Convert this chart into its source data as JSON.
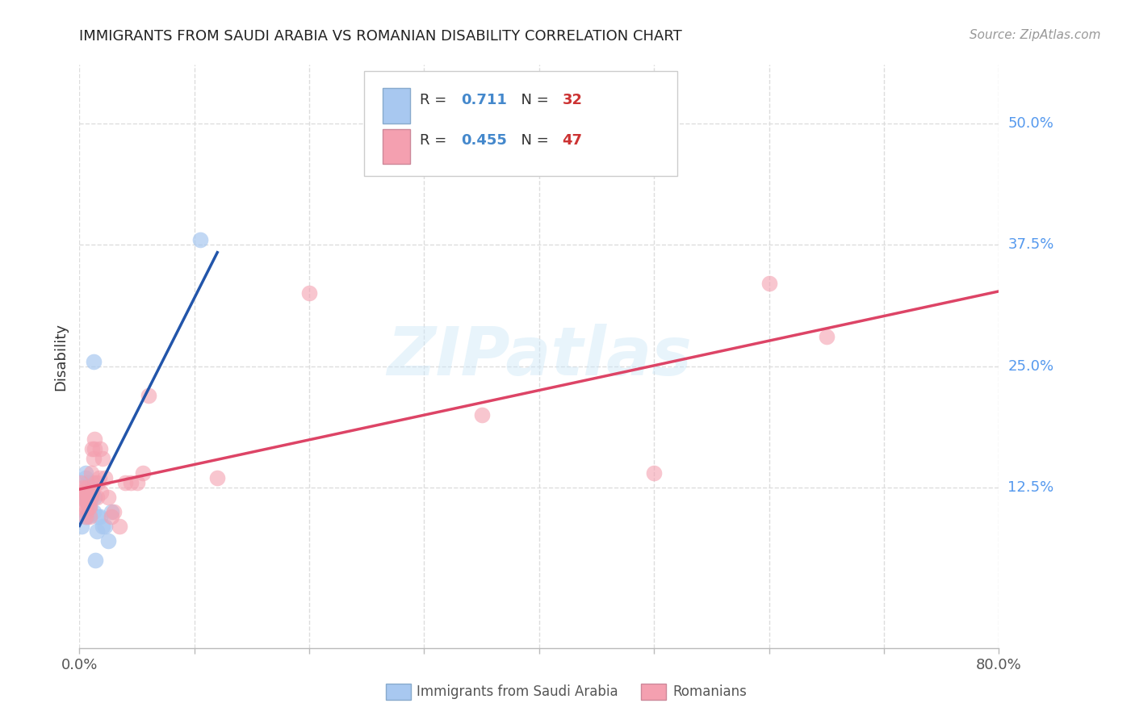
{
  "title": "IMMIGRANTS FROM SAUDI ARABIA VS ROMANIAN DISABILITY CORRELATION CHART",
  "source": "Source: ZipAtlas.com",
  "ylabel": "Disability",
  "watermark": "ZIPatlas",
  "legend_r1": "R =  0.711   N = 32",
  "legend_r2": "R =  0.455   N = 47",
  "legend_color1": "#a8c8f0",
  "legend_color2": "#f4a8b8",
  "legend_r_color": "#4488cc",
  "legend_n_color": "#cc3333",
  "right_yticks": [
    "50.0%",
    "37.5%",
    "25.0%",
    "12.5%"
  ],
  "right_ytick_vals": [
    0.5,
    0.375,
    0.25,
    0.125
  ],
  "xlim": [
    0.0,
    0.8
  ],
  "ylim": [
    -0.04,
    0.56
  ],
  "saudi_x": [
    0.002,
    0.003,
    0.004,
    0.005,
    0.005,
    0.006,
    0.006,
    0.007,
    0.007,
    0.007,
    0.008,
    0.008,
    0.008,
    0.009,
    0.009,
    0.009,
    0.01,
    0.01,
    0.01,
    0.011,
    0.012,
    0.012,
    0.013,
    0.014,
    0.015,
    0.016,
    0.018,
    0.02,
    0.022,
    0.025,
    0.028,
    0.105
  ],
  "saudi_y": [
    0.085,
    0.115,
    0.115,
    0.135,
    0.14,
    0.095,
    0.11,
    0.095,
    0.115,
    0.13,
    0.1,
    0.115,
    0.12,
    0.1,
    0.105,
    0.11,
    0.115,
    0.12,
    0.125,
    0.13,
    0.255,
    0.1,
    0.115,
    0.05,
    0.08,
    0.095,
    0.095,
    0.085,
    0.085,
    0.07,
    0.1,
    0.38
  ],
  "romanian_x": [
    0.001,
    0.002,
    0.003,
    0.003,
    0.004,
    0.004,
    0.005,
    0.005,
    0.005,
    0.006,
    0.006,
    0.007,
    0.007,
    0.008,
    0.008,
    0.009,
    0.009,
    0.01,
    0.01,
    0.011,
    0.011,
    0.012,
    0.013,
    0.013,
    0.014,
    0.015,
    0.016,
    0.017,
    0.018,
    0.019,
    0.02,
    0.022,
    0.025,
    0.028,
    0.03,
    0.035,
    0.04,
    0.045,
    0.05,
    0.055,
    0.06,
    0.12,
    0.2,
    0.35,
    0.5,
    0.6,
    0.65
  ],
  "romanian_y": [
    0.13,
    0.12,
    0.115,
    0.125,
    0.105,
    0.115,
    0.095,
    0.105,
    0.12,
    0.1,
    0.12,
    0.11,
    0.125,
    0.105,
    0.115,
    0.095,
    0.105,
    0.115,
    0.14,
    0.12,
    0.165,
    0.155,
    0.165,
    0.175,
    0.13,
    0.115,
    0.13,
    0.135,
    0.165,
    0.12,
    0.155,
    0.135,
    0.115,
    0.095,
    0.1,
    0.085,
    0.13,
    0.13,
    0.13,
    0.14,
    0.22,
    0.135,
    0.325,
    0.2,
    0.14,
    0.335,
    0.28
  ],
  "saudi_color": "#a8c8f0",
  "romanian_color": "#f4a0b0",
  "trendline_saudi_color": "#2255aa",
  "trendline_romanian_color": "#dd4466",
  "trendline_dashed_color": "#aaccee",
  "grid_color": "#dddddd",
  "background_color": "#ffffff",
  "xticks": [
    0.0,
    0.1,
    0.2,
    0.3,
    0.4,
    0.5,
    0.6,
    0.7,
    0.8
  ]
}
